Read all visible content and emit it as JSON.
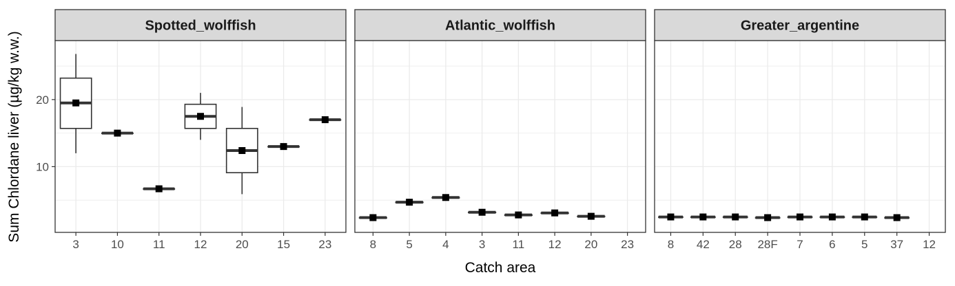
{
  "chart_data": {
    "type": "boxplot",
    "ylabel": "Sum Chlordane liver (µg/kg w.w.)",
    "xlabel": "Catch area",
    "ylim": [
      0.2,
      28.8
    ],
    "yticks": [
      10,
      20
    ],
    "grid": true,
    "legend": "none",
    "colors": {
      "box_line": "#333333",
      "strip_fill": "#d9d9d9",
      "grid": "#ebebeb",
      "panel_border": "#333333"
    },
    "panels": [
      {
        "title": "Spotted_wolffish",
        "categories": [
          "3",
          "10",
          "11",
          "12",
          "20",
          "15",
          "23"
        ],
        "boxes": [
          {
            "min": 12.0,
            "q1": 15.7,
            "median": 19.5,
            "q3": 23.2,
            "max": 26.8,
            "mean": 19.5
          },
          {
            "min": 15.0,
            "q1": 15.0,
            "median": 15.0,
            "q3": 15.0,
            "max": 15.0,
            "mean": 15.0
          },
          {
            "min": 6.7,
            "q1": 6.7,
            "median": 6.7,
            "q3": 6.7,
            "max": 6.7,
            "mean": 6.7
          },
          {
            "min": 14.0,
            "q1": 15.7,
            "median": 17.5,
            "q3": 19.3,
            "max": 21.0,
            "mean": 17.5
          },
          {
            "min": 5.9,
            "q1": 9.1,
            "median": 12.4,
            "q3": 15.7,
            "max": 18.9,
            "mean": 12.4
          },
          {
            "min": 13.0,
            "q1": 13.0,
            "median": 13.0,
            "q3": 13.0,
            "max": 13.0,
            "mean": 13.0
          },
          {
            "min": 17.0,
            "q1": 17.0,
            "median": 17.0,
            "q3": 17.0,
            "max": 17.0,
            "mean": 17.0
          }
        ]
      },
      {
        "title": "Atlantic_wolffish",
        "categories": [
          "8",
          "5",
          "4",
          "3",
          "11",
          "12",
          "20",
          "23"
        ],
        "boxes": [
          {
            "min": 2.4,
            "q1": 2.4,
            "median": 2.4,
            "q3": 2.4,
            "max": 2.4,
            "mean": 2.4
          },
          {
            "min": 4.7,
            "q1": 4.7,
            "median": 4.7,
            "q3": 4.7,
            "max": 4.7,
            "mean": 4.7
          },
          {
            "min": 5.4,
            "q1": 5.4,
            "median": 5.4,
            "q3": 5.4,
            "max": 5.4,
            "mean": 5.4
          },
          {
            "min": 3.2,
            "q1": 3.2,
            "median": 3.2,
            "q3": 3.2,
            "max": 3.2,
            "mean": 3.2
          },
          {
            "min": 2.8,
            "q1": 2.8,
            "median": 2.8,
            "q3": 2.8,
            "max": 2.8,
            "mean": 2.8
          },
          {
            "min": 3.1,
            "q1": 3.1,
            "median": 3.1,
            "q3": 3.1,
            "max": 3.1,
            "mean": 3.1
          },
          {
            "min": 2.6,
            "q1": 2.6,
            "median": 2.6,
            "q3": 2.6,
            "max": 2.6,
            "mean": 2.6
          },
          null
        ]
      },
      {
        "title": "Greater_argentine",
        "categories": [
          "8",
          "42",
          "28",
          "28F",
          "7",
          "6",
          "5",
          "37",
          "12"
        ],
        "boxes": [
          {
            "min": 2.5,
            "q1": 2.5,
            "median": 2.5,
            "q3": 2.5,
            "max": 2.5,
            "mean": 2.5
          },
          {
            "min": 2.5,
            "q1": 2.5,
            "median": 2.5,
            "q3": 2.5,
            "max": 2.5,
            "mean": 2.5
          },
          {
            "min": 2.5,
            "q1": 2.5,
            "median": 2.5,
            "q3": 2.5,
            "max": 2.5,
            "mean": 2.5
          },
          {
            "min": 2.4,
            "q1": 2.4,
            "median": 2.4,
            "q3": 2.4,
            "max": 2.4,
            "mean": 2.4
          },
          {
            "min": 2.5,
            "q1": 2.5,
            "median": 2.5,
            "q3": 2.5,
            "max": 2.5,
            "mean": 2.5
          },
          {
            "min": 2.5,
            "q1": 2.5,
            "median": 2.5,
            "q3": 2.5,
            "max": 2.5,
            "mean": 2.5
          },
          {
            "min": 2.5,
            "q1": 2.5,
            "median": 2.5,
            "q3": 2.5,
            "max": 2.5,
            "mean": 2.5
          },
          {
            "min": 2.4,
            "q1": 2.4,
            "median": 2.4,
            "q3": 2.4,
            "max": 2.4,
            "mean": 2.4
          },
          null
        ]
      }
    ]
  }
}
